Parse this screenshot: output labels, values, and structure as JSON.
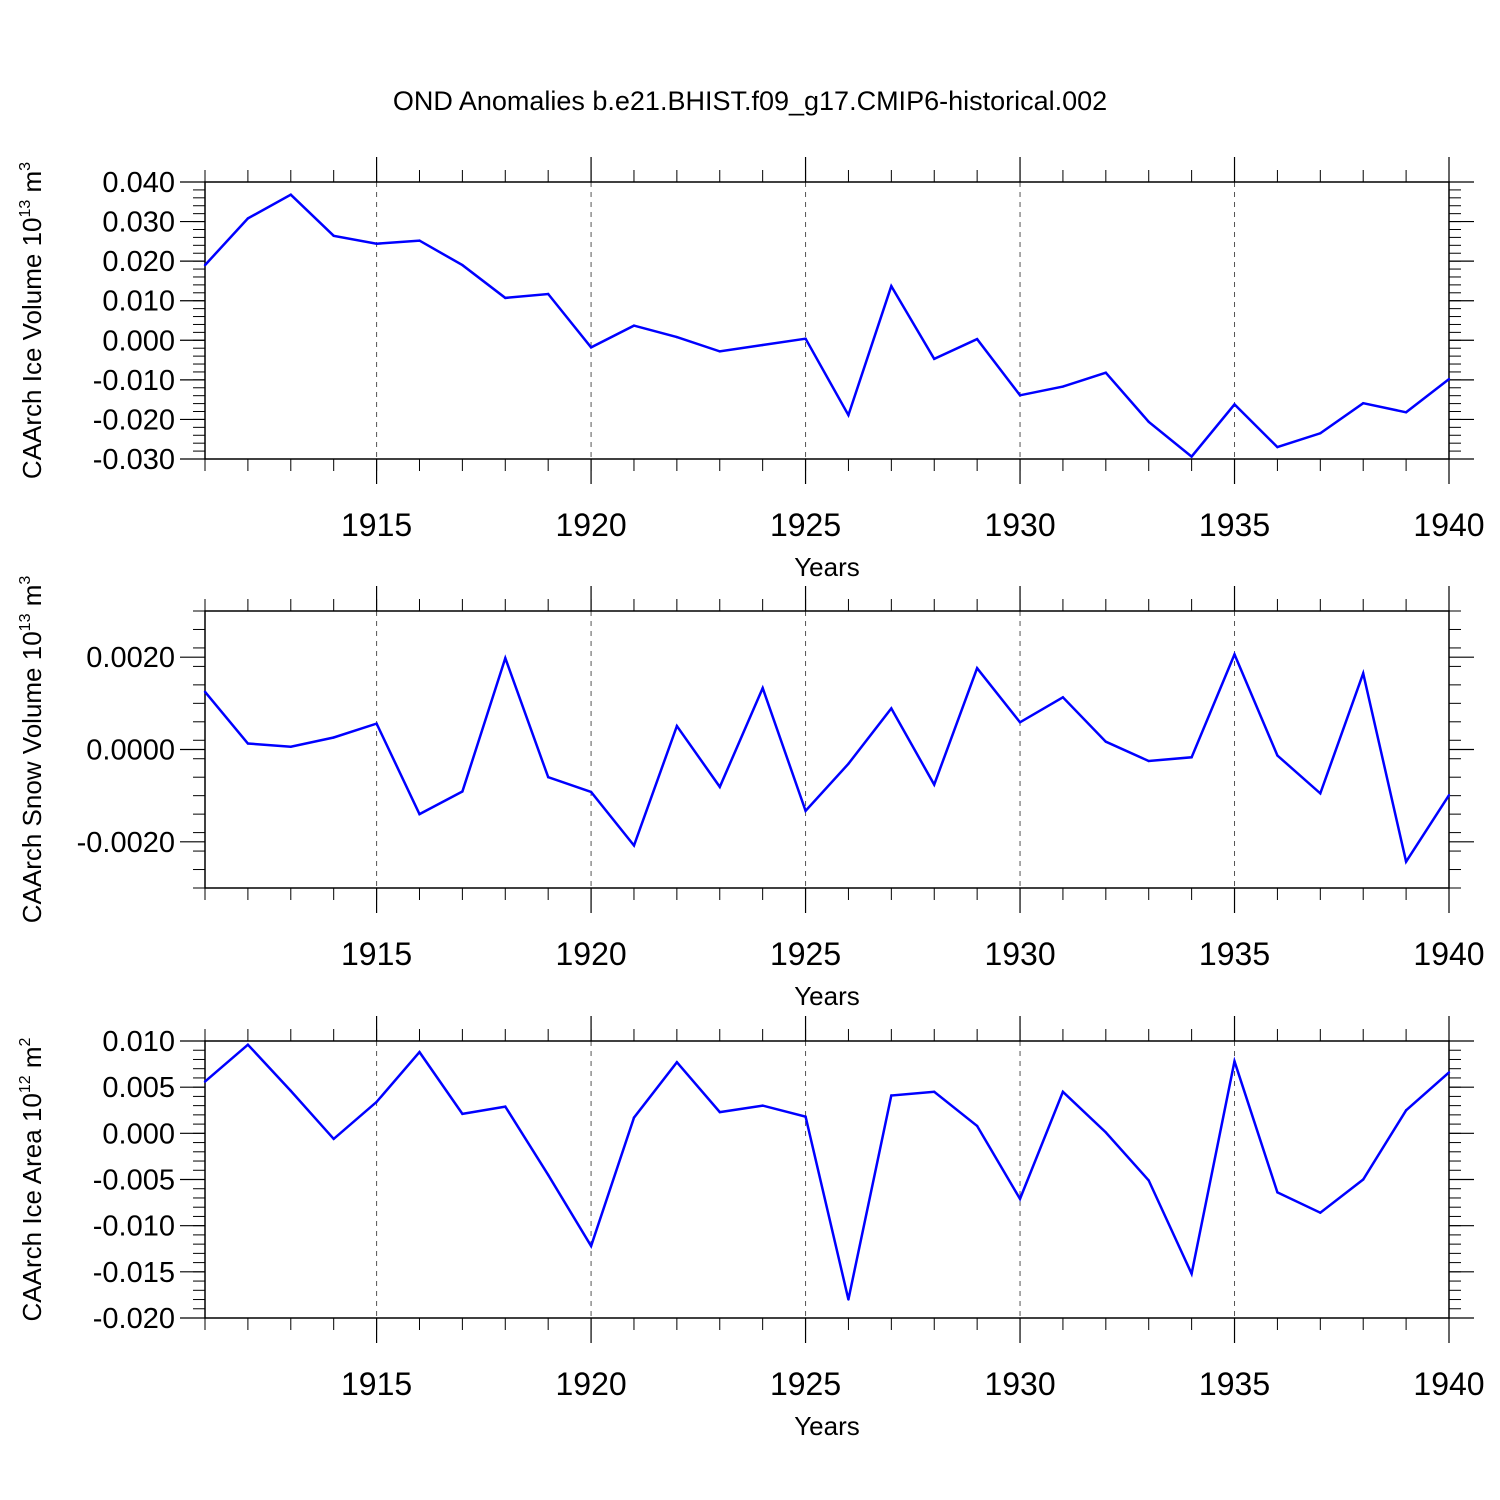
{
  "title": "OND Anomalies b.e21.BHIST.f09_g17.CMIP6-historical.002",
  "colors": {
    "line": "#0000ff",
    "axis": "#000000",
    "grid": "#555555"
  },
  "chart_data": [
    {
      "type": "line",
      "ylabel": "CAArch Ice Volume 10",
      "ylabel_sup": "13",
      "ylabel_unit": " m",
      "ylabel_unit_sup": "3",
      "xlabel": "Years",
      "xlim": [
        1911,
        1940
      ],
      "ylim": [
        -0.03,
        0.04
      ],
      "yticks": [
        -0.03,
        -0.02,
        -0.01,
        0.0,
        0.01,
        0.02,
        0.03,
        0.04
      ],
      "ytick_labels": [
        "-0.030",
        "-0.020",
        "-0.010",
        "0.000",
        "0.010",
        "0.020",
        "0.030",
        "0.040"
      ],
      "xticks": [
        1915,
        1920,
        1925,
        1930,
        1935,
        1940
      ],
      "xtick_labels": [
        "1915",
        "1920",
        "1925",
        "1930",
        "1935",
        "1940"
      ],
      "x": [
        1911,
        1912,
        1913,
        1914,
        1915,
        1916,
        1917,
        1918,
        1919,
        1920,
        1921,
        1922,
        1923,
        1924,
        1925,
        1926,
        1927,
        1928,
        1929,
        1930,
        1931,
        1932,
        1933,
        1934,
        1935,
        1936,
        1937,
        1938,
        1939,
        1940
      ],
      "values": [
        0.019,
        0.0308,
        0.0368,
        0.0264,
        0.0244,
        0.0252,
        0.019,
        0.0107,
        0.0117,
        -0.0018,
        0.0037,
        0.0008,
        -0.0028,
        -0.0012,
        0.0004,
        -0.0189,
        0.0137,
        -0.0047,
        0.0003,
        -0.0139,
        -0.0117,
        -0.0082,
        -0.0206,
        -0.0294,
        -0.0162,
        -0.027,
        -0.0235,
        -0.0159,
        -0.0182,
        -0.0098
      ]
    },
    {
      "type": "line",
      "ylabel": "CAArch Snow Volume 10",
      "ylabel_sup": "13",
      "ylabel_unit": " m",
      "ylabel_unit_sup": "3",
      "xlabel": "Years",
      "xlim": [
        1911,
        1940
      ],
      "ylim": [
        -0.003,
        0.003
      ],
      "yticks": [
        -0.002,
        0.0,
        0.002
      ],
      "ytick_labels": [
        "-0.0020",
        "0.0000",
        "0.0020"
      ],
      "xticks": [
        1915,
        1920,
        1925,
        1930,
        1935,
        1940
      ],
      "xtick_labels": [
        "1915",
        "1920",
        "1925",
        "1930",
        "1935",
        "1940"
      ],
      "x": [
        1911,
        1912,
        1913,
        1914,
        1915,
        1916,
        1917,
        1918,
        1919,
        1920,
        1921,
        1922,
        1923,
        1924,
        1925,
        1926,
        1927,
        1928,
        1929,
        1930,
        1931,
        1932,
        1933,
        1934,
        1935,
        1936,
        1937,
        1938,
        1939,
        1940
      ],
      "values": [
        0.00125,
        0.00013,
        6e-05,
        0.00026,
        0.00056,
        -0.0014,
        -0.00091,
        0.00198,
        -0.0006,
        -0.00092,
        -0.00208,
        0.00051,
        -0.00081,
        0.00133,
        -0.00133,
        -0.00031,
        0.00089,
        -0.00076,
        0.00176,
        0.00059,
        0.00113,
        0.00017,
        -0.00025,
        -0.00017,
        0.00206,
        -0.00013,
        -0.00095,
        0.00165,
        -0.00243,
        -0.00099
      ]
    },
    {
      "type": "line",
      "ylabel": "CAArch Ice Area 10",
      "ylabel_sup": "12",
      "ylabel_unit": " m",
      "ylabel_unit_sup": "2",
      "xlabel": "Years",
      "xlim": [
        1911,
        1940
      ],
      "ylim": [
        -0.02,
        0.01
      ],
      "yticks": [
        -0.02,
        -0.015,
        -0.01,
        -0.005,
        0.0,
        0.005,
        0.01
      ],
      "ytick_labels": [
        "-0.020",
        "-0.015",
        "-0.010",
        "-0.005",
        "0.000",
        "0.005",
        "0.010"
      ],
      "xticks": [
        1915,
        1920,
        1925,
        1930,
        1935,
        1940
      ],
      "xtick_labels": [
        "1915",
        "1920",
        "1925",
        "1930",
        "1935",
        "1940"
      ],
      "x": [
        1911,
        1912,
        1913,
        1914,
        1915,
        1916,
        1917,
        1918,
        1919,
        1920,
        1921,
        1922,
        1923,
        1924,
        1925,
        1926,
        1927,
        1928,
        1929,
        1930,
        1931,
        1932,
        1933,
        1934,
        1935,
        1936,
        1937,
        1938,
        1939,
        1940
      ],
      "values": [
        0.0056,
        0.0096,
        0.0046,
        -0.0006,
        0.0034,
        0.0088,
        0.0021,
        0.0029,
        -0.0045,
        -0.0122,
        0.0017,
        0.0077,
        0.0023,
        0.003,
        0.0018,
        -0.018,
        0.0041,
        0.0045,
        0.0008,
        -0.0071,
        0.0045,
        0.0001,
        -0.0051,
        -0.0152,
        0.0078,
        -0.0064,
        -0.0086,
        -0.005,
        0.0025,
        0.0066
      ]
    }
  ]
}
